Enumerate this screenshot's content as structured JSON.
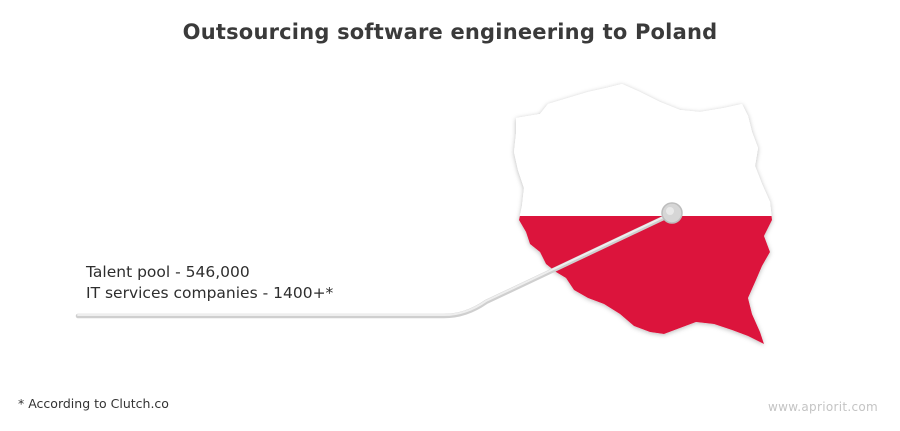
{
  "title": "Outsourcing software engineering to Poland",
  "stats": {
    "talent_pool": "Talent pool - 546,000",
    "it_companies": "IT services companies - 1400+*"
  },
  "footnote": "* According to Clutch.co",
  "watermark": "www.apriorit.com",
  "colors": {
    "flag_white": "#ffffff",
    "flag_red": "#dc143c",
    "text": "#333333"
  }
}
